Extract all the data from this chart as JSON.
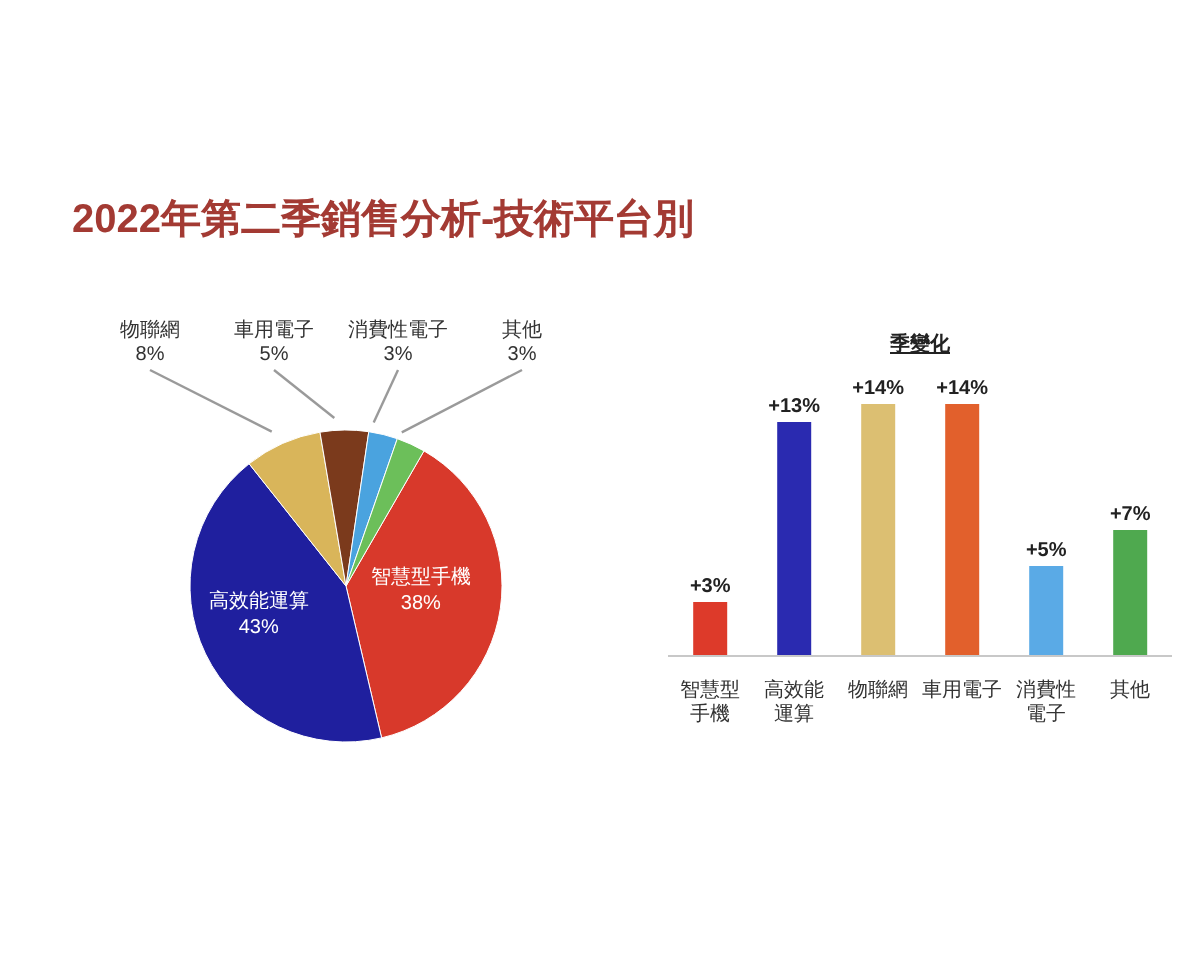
{
  "chart_data": [
    {
      "type": "pie",
      "title": "2022年第二季銷售分析-技術平台別",
      "categories": [
        "智慧型手機",
        "高效能運算",
        "物聯網",
        "車用電子",
        "消費性電子",
        "其他"
      ],
      "values": [
        38,
        43,
        8,
        5,
        3,
        3
      ],
      "colors": [
        "#d8392b",
        "#1f1f9e",
        "#d9b55a",
        "#7b3a1c",
        "#4aa3df",
        "#6cbf5a"
      ],
      "value_labels": [
        "38%",
        "43%",
        "8%",
        "5%",
        "3%",
        "3%"
      ]
    },
    {
      "type": "bar",
      "title": "季變化",
      "categories": [
        "智慧型手機",
        "高效能運算",
        "物聯網",
        "車用電子",
        "消費性電子",
        "其他"
      ],
      "values": [
        3,
        13,
        14,
        14,
        5,
        7
      ],
      "colors": [
        "#dd3a2a",
        "#2a2ab0",
        "#dcbf72",
        "#e2602c",
        "#5aaae6",
        "#4fa94f"
      ],
      "value_labels": [
        "+3%",
        "+13%",
        "+14%",
        "+14%",
        "+5%",
        "+7%"
      ]
    }
  ]
}
